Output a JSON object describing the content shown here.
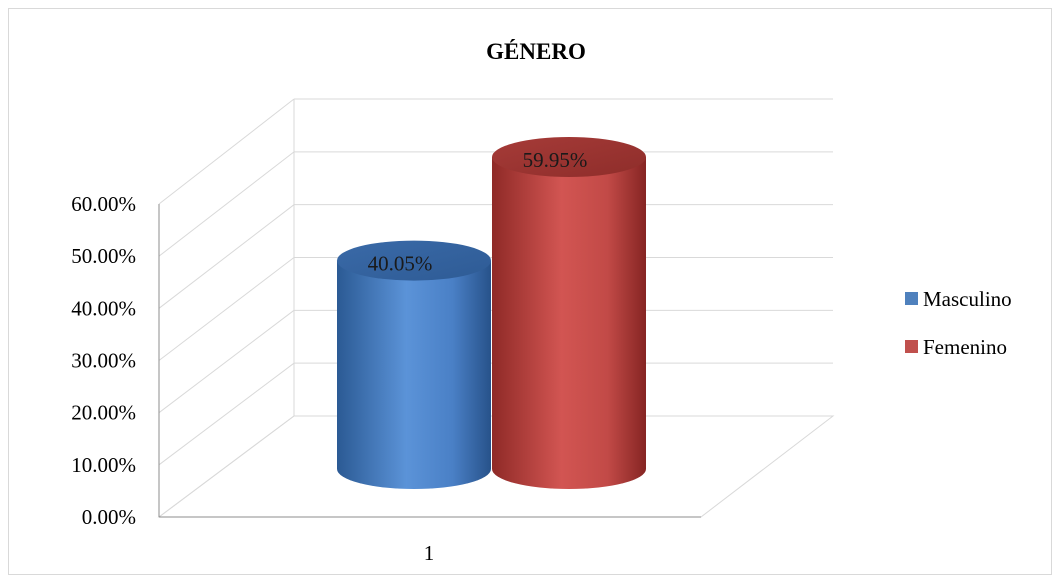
{
  "chart_data": {
    "type": "bar",
    "title": "GÉNERO",
    "categories": [
      "1"
    ],
    "series": [
      {
        "name": "Masculino",
        "values": [
          40.05
        ],
        "label": "40.05%",
        "color": "#4f81bd"
      },
      {
        "name": "Femenino",
        "values": [
          59.95
        ],
        "label": "59.95%",
        "color": "#c0504d"
      }
    ],
    "yticks": [
      "0.00%",
      "10.00%",
      "20.00%",
      "30.00%",
      "40.00%",
      "50.00%",
      "60.00%"
    ],
    "ylim": [
      0,
      60
    ],
    "legend_position": "right",
    "grid": true,
    "three_d": true,
    "shape": "cylinder"
  }
}
